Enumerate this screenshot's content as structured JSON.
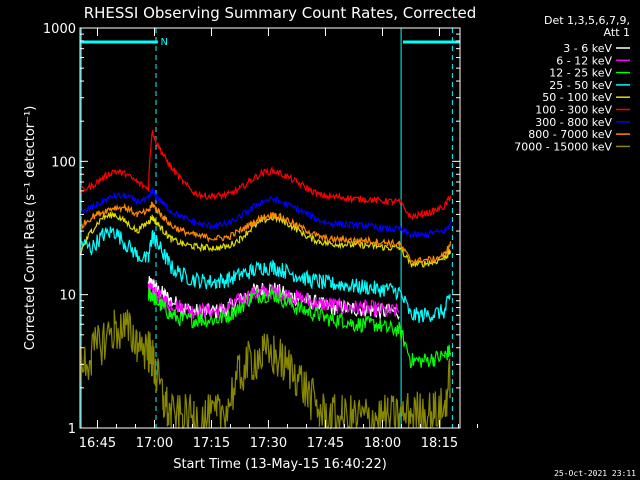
{
  "chart_data": {
    "type": "line",
    "title": "RHESSI Observing Summary Count Rates, Corrected",
    "xlabel": "Start Time (13-May-15 16:40:22)",
    "ylabel": "Corrected Count Rate (s⁻¹ detector⁻¹)",
    "yscale": "log",
    "ylim": [
      1,
      1000
    ],
    "xlim_minutes": [
      0,
      100
    ],
    "x_ticks": [
      {
        "t": 4.6,
        "label": "16:45"
      },
      {
        "t": 19.6,
        "label": "17:00"
      },
      {
        "t": 34.6,
        "label": "17:15"
      },
      {
        "t": 49.6,
        "label": "17:30"
      },
      {
        "t": 64.6,
        "label": "17:45"
      },
      {
        "t": 79.6,
        "label": "18:00"
      },
      {
        "t": 94.6,
        "label": "18:15"
      }
    ],
    "y_ticks": [
      {
        "v": 1,
        "label": "1"
      },
      {
        "v": 10,
        "label": "10"
      },
      {
        "v": 100,
        "label": "100"
      },
      {
        "v": 1000,
        "label": "1000"
      }
    ],
    "legend_header": [
      "Det 1,3,5,6,7,9,",
      "Att 1"
    ],
    "night_marker_label": "N",
    "day_bars": [
      [
        0,
        20.5
      ],
      [
        85,
        100
      ]
    ],
    "vertical_lines": [
      {
        "t": 0.3,
        "color": "#00ffff",
        "style": "solid"
      },
      {
        "t": 20,
        "color": "#00ffff",
        "style": "dashed"
      },
      {
        "t": 84.5,
        "color": "#00ffff",
        "style": "solid"
      },
      {
        "t": 98,
        "color": "#00ffff",
        "style": "dashed"
      }
    ],
    "x_minutes": [
      0,
      3,
      6,
      9,
      12,
      15,
      18,
      19,
      20,
      22,
      24,
      27,
      30,
      33,
      36,
      39,
      42,
      45,
      48,
      51,
      54,
      57,
      60,
      63,
      66,
      69,
      72,
      75,
      78,
      81,
      84,
      87,
      90,
      93,
      96,
      97.5
    ],
    "series": [
      {
        "name": "3 - 6 keV",
        "color": "#ffffff",
        "values": [
          null,
          null,
          null,
          null,
          null,
          null,
          12,
          12,
          11,
          10,
          9,
          8,
          7.5,
          7.5,
          7.5,
          8,
          9,
          10.5,
          11,
          11,
          10,
          9.5,
          9,
          8.5,
          8,
          8,
          7.8,
          7.8,
          7.5,
          7.5,
          7.5,
          null,
          null,
          null,
          null,
          null
        ]
      },
      {
        "name": "6 - 12 keV",
        "color": "#ff00ff",
        "values": [
          null,
          null,
          null,
          null,
          null,
          null,
          11,
          10.5,
          10,
          9,
          8.5,
          8,
          7.5,
          7.5,
          7.5,
          8,
          9,
          10,
          10.5,
          10.5,
          10,
          9.5,
          9,
          8.5,
          8.5,
          8,
          8,
          8,
          7.8,
          7.5,
          7.5,
          null,
          null,
          null,
          null,
          null
        ]
      },
      {
        "name": "12 - 25 keV",
        "color": "#00ff00",
        "values": [
          null,
          null,
          null,
          null,
          null,
          null,
          10,
          10,
          9,
          8,
          7,
          6.5,
          6.5,
          6.5,
          6.5,
          7,
          8,
          9.5,
          10,
          10,
          9,
          8,
          7.5,
          7,
          6.5,
          6.5,
          6,
          6,
          6,
          5.5,
          5.5,
          3.2,
          3.2,
          3.3,
          3.5,
          3.8
        ]
      },
      {
        "name": "25 - 50 keV",
        "color": "#00ffff",
        "values": [
          25,
          22,
          28,
          30,
          24,
          20,
          18,
          28,
          25,
          20,
          16,
          14,
          13,
          12.5,
          12.5,
          13,
          14,
          15,
          16,
          16,
          15,
          14,
          13,
          12.5,
          12,
          12,
          11.5,
          11.5,
          11,
          11,
          10.5,
          7,
          7,
          7.2,
          7.5,
          10
        ]
      },
      {
        "name": "50 - 100 keV",
        "color": "#dddd00",
        "values": [
          20,
          30,
          38,
          40,
          35,
          30,
          35,
          38,
          35,
          30,
          26,
          24,
          23,
          22.5,
          22.5,
          23,
          26,
          31,
          36,
          38,
          35,
          31,
          27,
          25,
          24,
          24,
          23.5,
          23.5,
          23,
          22.5,
          22.5,
          17,
          17,
          17.5,
          19,
          21
        ]
      },
      {
        "name": "100 - 300 keV",
        "color": "#ff0000",
        "values": [
          60,
          65,
          75,
          85,
          80,
          70,
          62,
          170,
          140,
          110,
          90,
          70,
          58,
          55,
          55,
          56,
          62,
          72,
          82,
          85,
          78,
          70,
          62,
          56,
          54,
          54,
          52,
          52,
          51,
          50,
          50,
          38,
          40,
          42,
          46,
          55
        ]
      },
      {
        "name": "300 - 800 keV",
        "color": "#0000ff",
        "values": [
          40,
          45,
          50,
          55,
          55,
          50,
          52,
          60,
          55,
          48,
          42,
          38,
          35,
          33,
          33,
          34,
          38,
          44,
          50,
          52,
          48,
          44,
          40,
          36,
          34,
          34,
          33,
          33,
          32,
          31,
          31,
          28,
          28,
          29,
          30,
          34
        ]
      },
      {
        "name": "800 - 7000 keV",
        "color": "#ff8800",
        "values": [
          32,
          38,
          42,
          45,
          45,
          40,
          42,
          48,
          44,
          38,
          33,
          30,
          28,
          27,
          26.5,
          27,
          30,
          34,
          38,
          40,
          37,
          33,
          30,
          27,
          26,
          26,
          25.5,
          25.5,
          25,
          24.5,
          24,
          18,
          18,
          18.5,
          20,
          24
        ]
      },
      {
        "name": "7000 - 15000 keV",
        "color": "#888800",
        "values": [
          2.8,
          3.5,
          4.5,
          5.5,
          5.5,
          4.5,
          3.8,
          3.3,
          2.5,
          1.6,
          1.2,
          1.2,
          1.2,
          1.2,
          1.2,
          1.5,
          2.5,
          3.2,
          3.5,
          3.5,
          3.0,
          2.5,
          1.8,
          1.3,
          1.2,
          1.2,
          1.2,
          1.2,
          1.2,
          1.2,
          1.2,
          1.3,
          1.3,
          1.3,
          1.4,
          2.5
        ]
      }
    ]
  },
  "footer": {
    "timestamp": "25-Oct-2021 23:11"
  }
}
